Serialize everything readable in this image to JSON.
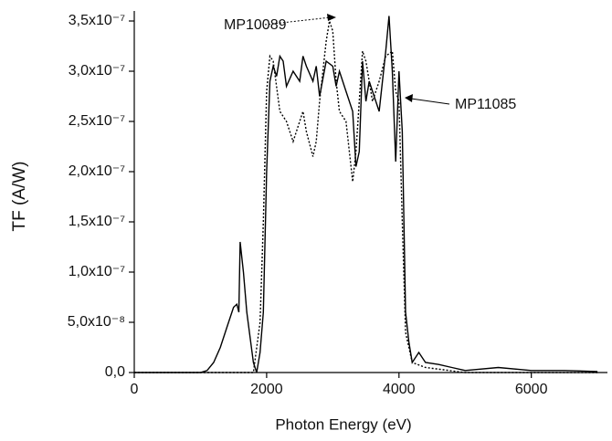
{
  "chart_data": {
    "type": "line",
    "x_label": "Photon Energy (eV)",
    "y_label": "TF (A/W)",
    "xlim": [
      0,
      7150
    ],
    "xticks": [
      0,
      2000,
      4000,
      6000
    ],
    "ylim": [
      0,
      3.6e-07
    ],
    "yticks": [
      {
        "value": 0,
        "label": "0,0"
      },
      {
        "value": 5e-08,
        "label": "5,0x10⁻⁸"
      },
      {
        "value": 1e-07,
        "label": "1,0x10⁻⁷"
      },
      {
        "value": 1.5e-07,
        "label": "1,5x10⁻⁷"
      },
      {
        "value": 2e-07,
        "label": "2,0x10⁻⁷"
      },
      {
        "value": 2.5e-07,
        "label": "2,5x10⁻⁷"
      },
      {
        "value": 3e-07,
        "label": "3,0x10⁻⁷"
      },
      {
        "value": 3.5e-07,
        "label": "3,5x10⁻⁷"
      }
    ],
    "series": [
      {
        "name": "MP11085",
        "color": "#000000",
        "dash": "solid",
        "x": [
          0,
          1000,
          1100,
          1200,
          1300,
          1400,
          1500,
          1550,
          1580,
          1600,
          1650,
          1700,
          1800,
          1850,
          1900,
          1950,
          2000,
          2050,
          2100,
          2150,
          2200,
          2250,
          2300,
          2400,
          2500,
          2550,
          2600,
          2700,
          2750,
          2800,
          2900,
          3000,
          3050,
          3100,
          3200,
          3300,
          3350,
          3400,
          3450,
          3500,
          3550,
          3600,
          3700,
          3750,
          3800,
          3850,
          3900,
          3950,
          4000,
          4050,
          4100,
          4150,
          4200,
          4300,
          4400,
          4600,
          4800,
          5000,
          5500,
          6000,
          6500,
          7000
        ],
        "values": [
          0,
          0,
          2e-09,
          1e-08,
          2.5e-08,
          4.5e-08,
          6.5e-08,
          6.8e-08,
          6e-08,
          1.3e-07,
          1e-07,
          6e-08,
          1e-08,
          0,
          2e-08,
          6e-08,
          2e-07,
          2.9e-07,
          3.05e-07,
          2.95e-07,
          3.15e-07,
          3.1e-07,
          2.85e-07,
          3e-07,
          2.9e-07,
          3.15e-07,
          3.05e-07,
          2.9e-07,
          3.05e-07,
          2.75e-07,
          3.1e-07,
          3.05e-07,
          2.85e-07,
          3e-07,
          2.8e-07,
          2.6e-07,
          2.05e-07,
          2.2e-07,
          3.1e-07,
          2.7e-07,
          2.9e-07,
          2.8e-07,
          2.6e-07,
          2.9e-07,
          3.2e-07,
          3.55e-07,
          3e-07,
          2.1e-07,
          3e-07,
          2.4e-07,
          6e-08,
          3e-08,
          1e-08,
          2e-08,
          1e-08,
          8e-09,
          5e-09,
          2e-09,
          5e-09,
          2e-09,
          2e-09,
          1e-09
        ]
      },
      {
        "name": "MP10089",
        "color": "#000000",
        "dash": "dotted",
        "x": [
          0,
          1800,
          1900,
          1950,
          2000,
          2050,
          2100,
          2200,
          2300,
          2400,
          2500,
          2550,
          2600,
          2700,
          2750,
          2800,
          2900,
          2950,
          3000,
          3050,
          3100,
          3200,
          3300,
          3350,
          3450,
          3500,
          3600,
          3700,
          3800,
          3900,
          3950,
          4000,
          4050,
          4100,
          4200,
          4400,
          5000,
          7000
        ],
        "values": [
          0,
          0,
          5e-08,
          1.5e-07,
          2.8e-07,
          3.15e-07,
          3.1e-07,
          2.6e-07,
          2.5e-07,
          2.3e-07,
          2.5e-07,
          2.6e-07,
          2.4e-07,
          2.15e-07,
          2.3e-07,
          2.7e-07,
          3.3e-07,
          3.5e-07,
          3.4e-07,
          2.9e-07,
          2.6e-07,
          2.5e-07,
          1.9e-07,
          2.2e-07,
          3.2e-07,
          3.1e-07,
          2.7e-07,
          2.9e-07,
          3.15e-07,
          3.2e-07,
          2.8e-07,
          2.7e-07,
          1.5e-07,
          4e-08,
          1e-08,
          5e-09,
          0,
          0
        ]
      }
    ]
  }
}
